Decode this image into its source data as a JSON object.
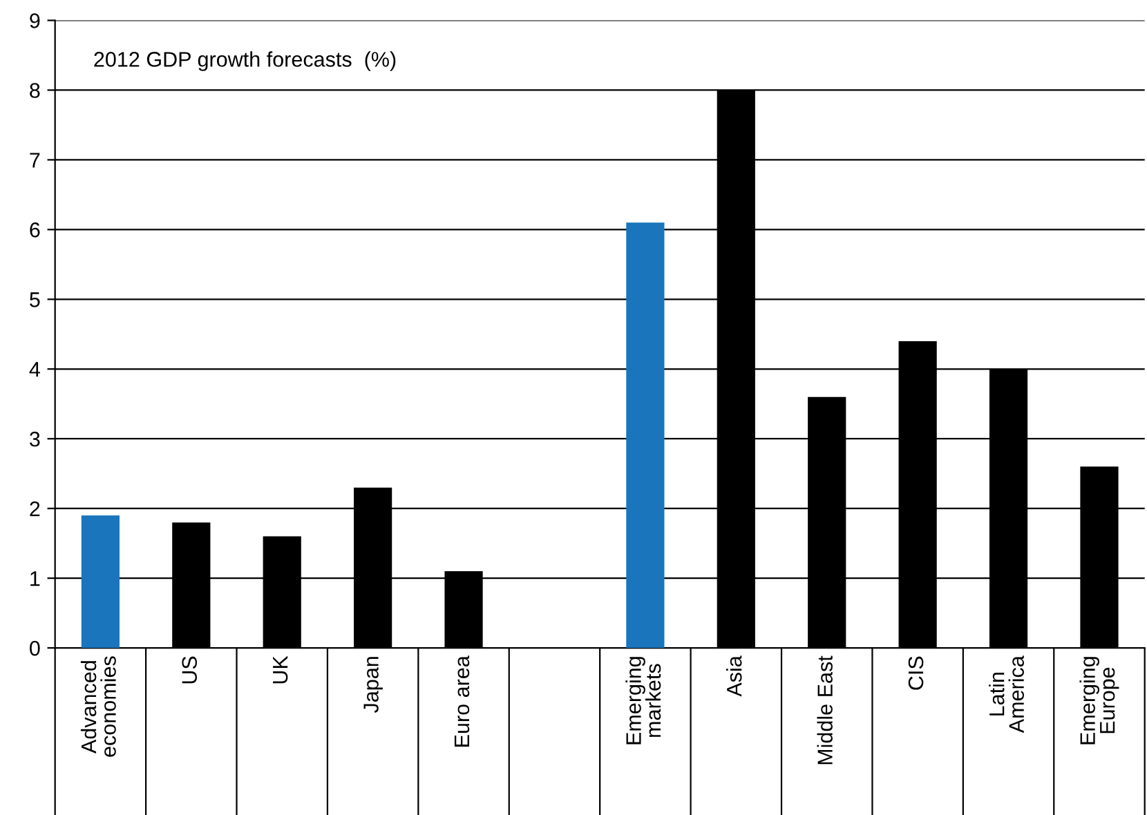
{
  "chart_data": {
    "type": "bar",
    "title": "2012 GDP growth forecasts  (%)",
    "categories": [
      "Advanced\neconomies",
      "US",
      "UK",
      "Japan",
      "Euro area",
      null,
      "Emerging\nmarkets",
      "Asia",
      "Middle East",
      "CIS",
      "Latin\nAmerica",
      "Emerging\nEurope"
    ],
    "values": [
      1.9,
      1.8,
      1.6,
      2.3,
      1.1,
      null,
      6.1,
      8.0,
      3.6,
      4.4,
      4.0,
      2.6
    ],
    "colors": [
      "#1a75bc",
      "#000000",
      "#000000",
      "#000000",
      "#000000",
      "#000000",
      "#1a75bc",
      "#000000",
      "#000000",
      "#000000",
      "#000000",
      "#000000"
    ],
    "ylim": [
      0,
      9
    ],
    "yticks": [
      0,
      1,
      2,
      3,
      4,
      5,
      6,
      7,
      8,
      9
    ],
    "grid": "y"
  }
}
